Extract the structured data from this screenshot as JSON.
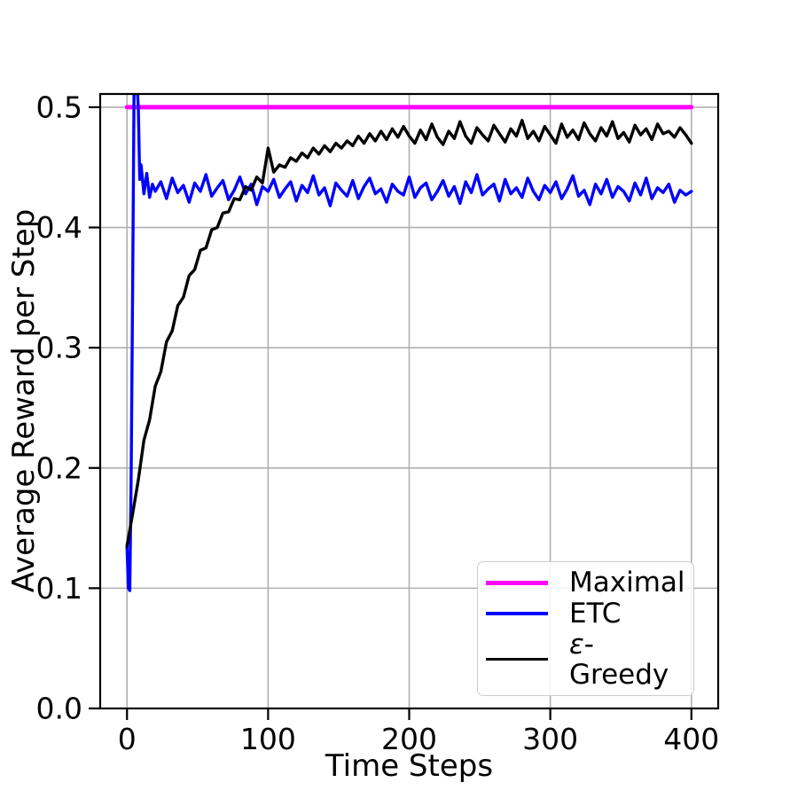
{
  "figure": {
    "background": "#ffffff"
  },
  "chart_data": {
    "type": "line",
    "title": "",
    "xlabel": "Time Steps",
    "ylabel": "Average Reward per Step",
    "xlim": [
      -19,
      419
    ],
    "ylim": [
      0,
      0.511
    ],
    "xticks": [
      0,
      100,
      200,
      300,
      400
    ],
    "xtick_labels": [
      "0",
      "100",
      "200",
      "300",
      "400"
    ],
    "yticks": [
      0,
      0.1,
      0.2,
      0.3,
      0.4,
      0.5
    ],
    "ytick_labels": [
      "0.0",
      "0.1",
      "0.2",
      "0.3",
      "0.4",
      "0.5"
    ],
    "grid": true,
    "grid_color": "#b0b0b0",
    "axis_color": "#000000",
    "legend": {
      "position": "lower right",
      "items": [
        "Maximal",
        "ETC",
        "ε-Greedy"
      ]
    },
    "series": [
      {
        "name": "Maximal",
        "color": "#ff00ff",
        "line_width": 5,
        "segments": [
          {
            "x0": 0,
            "dx": 400,
            "y": [
              0.5,
              0.5
            ]
          }
        ]
      },
      {
        "name": "ETC",
        "color": "#0000ff",
        "line_width": 3.4,
        "segments": [
          {
            "x0": 0,
            "dx": 1,
            "y": [
              0.135,
              0.1,
              0.098,
              0.2,
              0.35,
              0.515,
              0.525,
              0.52,
              0.5,
              0.44,
              0.452
            ]
          },
          {
            "x0": 12,
            "dx": 2,
            "y": [
              0.428,
              0.445,
              0.425,
              0.436,
              0.43
            ]
          },
          {
            "x0": 24,
            "dx": 4,
            "y": [
              0.438,
              0.424,
              0.441,
              0.429,
              0.435,
              0.421,
              0.437,
              0.43,
              0.444,
              0.426,
              0.433,
              0.439,
              0.423,
              0.431,
              0.442,
              0.428,
              0.436,
              0.419,
              0.434,
              0.43,
              0.44,
              0.425,
              0.432,
              0.438,
              0.422,
              0.435,
              0.429,
              0.443,
              0.427,
              0.433,
              0.418,
              0.437,
              0.431,
              0.426,
              0.439,
              0.424,
              0.434,
              0.441,
              0.428,
              0.432,
              0.421,
              0.436,
              0.43,
              0.427,
              0.442,
              0.425,
              0.433,
              0.437,
              0.423,
              0.43,
              0.439,
              0.426,
              0.434,
              0.42,
              0.438,
              0.429,
              0.444,
              0.427,
              0.432,
              0.436,
              0.422,
              0.44,
              0.428,
              0.433,
              0.425,
              0.441,
              0.43,
              0.423,
              0.435,
              0.429,
              0.438,
              0.424,
              0.432,
              0.443,
              0.426,
              0.431,
              0.419,
              0.436,
              0.428,
              0.44,
              0.425,
              0.434,
              0.43,
              0.422,
              0.437,
              0.427,
              0.441,
              0.424,
              0.433,
              0.429,
              0.436,
              0.421,
              0.431,
              0.427,
              0.43
            ]
          }
        ]
      },
      {
        "name": "ε-Greedy",
        "color": "#000000",
        "line_width": 3.4,
        "segments": [
          {
            "x0": 0,
            "dx": 4,
            "y": [
              0.135,
              0.162,
              0.19,
              0.223,
              0.24,
              0.268,
              0.28,
              0.305,
              0.314,
              0.335,
              0.342,
              0.36,
              0.365,
              0.381,
              0.383,
              0.398,
              0.4,
              0.412,
              0.413,
              0.424,
              0.423,
              0.434,
              0.431,
              0.442,
              0.437,
              0.466,
              0.446,
              0.452,
              0.45,
              0.458,
              0.455,
              0.462,
              0.458,
              0.466,
              0.461,
              0.468,
              0.463,
              0.47,
              0.466,
              0.472,
              0.468,
              0.476,
              0.47,
              0.478,
              0.472,
              0.48,
              0.473,
              0.482,
              0.475,
              0.484,
              0.476,
              0.47,
              0.481,
              0.473,
              0.486,
              0.475,
              0.469,
              0.48,
              0.474,
              0.488,
              0.476,
              0.47,
              0.483,
              0.477,
              0.472,
              0.485,
              0.478,
              0.471,
              0.482,
              0.476,
              0.489,
              0.474,
              0.48,
              0.472,
              0.484,
              0.477,
              0.47,
              0.486,
              0.475,
              0.481,
              0.473,
              0.487,
              0.478,
              0.472,
              0.483,
              0.476,
              0.488,
              0.474,
              0.479,
              0.471,
              0.485,
              0.477,
              0.482,
              0.473,
              0.486,
              0.478,
              0.48,
              0.475,
              0.483,
              0.477,
              0.47
            ]
          }
        ]
      }
    ]
  }
}
